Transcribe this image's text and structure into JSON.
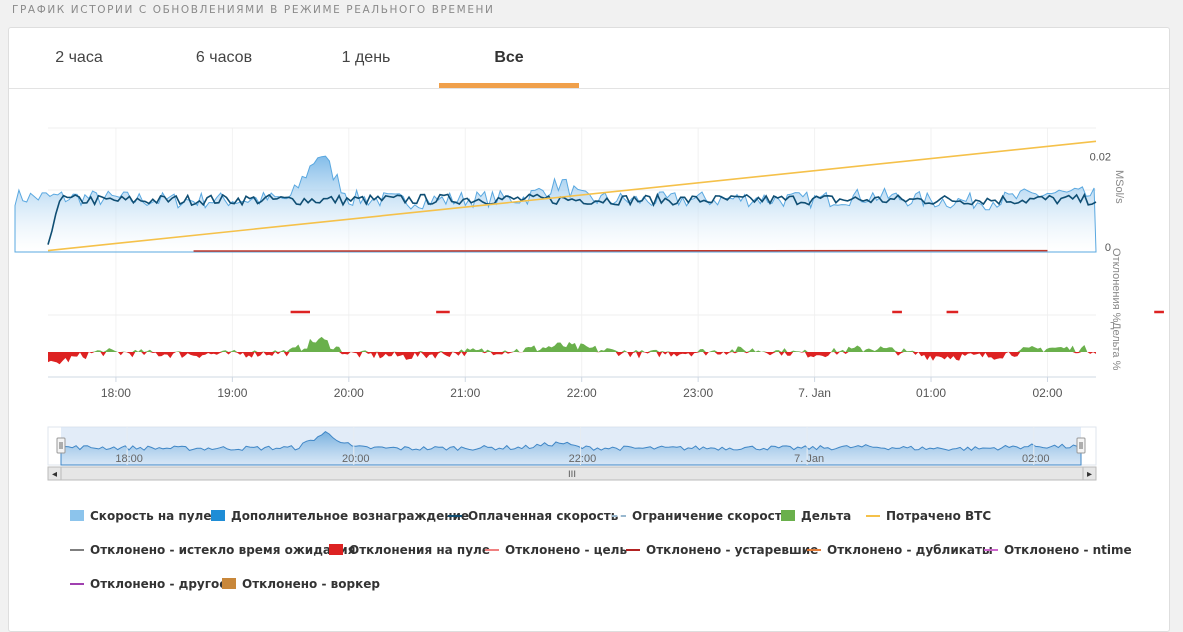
{
  "page_title": "ГРАФИК ИСТОРИИ С ОБНОВЛЕНИЯМИ В РЕЖИМЕ РЕАЛЬНОГО ВРЕМЕНИ",
  "tabs": [
    {
      "label": "2 часа",
      "active": false
    },
    {
      "label": "6 часов",
      "active": false
    },
    {
      "label": "1 день",
      "active": false
    },
    {
      "label": "Все",
      "active": true
    }
  ],
  "colors": {
    "pool_speed": "#8cc4ec",
    "bonus": "#1f8dd6",
    "paid_speed": "#0f4e73",
    "speed_limit": "#98b8cf",
    "delta_pos": "#6ab04c",
    "delta_neg": "#dd2222",
    "btc_spent": "#f5c14a",
    "rej_stale": "#c0392b",
    "accent": "#f0a04b"
  },
  "chart_data": {
    "type": "line",
    "x_range": [
      "17:25",
      "02:25"
    ],
    "x_ticks": [
      "18:00",
      "19:00",
      "20:00",
      "21:00",
      "22:00",
      "23:00",
      "7. Jan",
      "01:00",
      "02:00"
    ],
    "y_axes": [
      {
        "label": "MSol/s",
        "ticks": [
          "0.02",
          "0"
        ],
        "range": [
          0,
          0.026
        ]
      },
      {
        "label": "Отклонения %",
        "ticks": []
      },
      {
        "label": "Дельта %",
        "ticks": []
      }
    ],
    "series": [
      {
        "name": "Скорость на пуле",
        "type": "area",
        "x": [
          "17:30",
          "18:00",
          "18:30",
          "19:00",
          "19:30",
          "19:45",
          "20:00",
          "20:30",
          "21:00",
          "21:30",
          "21:50",
          "22:00",
          "22:30",
          "23:00",
          "23:30",
          "00:00",
          "00:30",
          "01:00",
          "01:30",
          "02:00",
          "02:25"
        ],
        "values": [
          0.0115,
          0.0112,
          0.0108,
          0.0109,
          0.0112,
          0.021,
          0.0113,
          0.0107,
          0.0111,
          0.0113,
          0.0145,
          0.0112,
          0.0108,
          0.011,
          0.0112,
          0.0109,
          0.0118,
          0.0108,
          0.0106,
          0.0123,
          0.0118
        ]
      },
      {
        "name": "Оплаченная скорость",
        "type": "line",
        "x": [
          "17:25",
          "17:30",
          "18:00",
          "19:00",
          "20:00",
          "21:00",
          "22:00",
          "23:00",
          "00:00",
          "01:00",
          "02:00",
          "02:25"
        ],
        "values": [
          0.0005,
          0.011,
          0.0108,
          0.011,
          0.0109,
          0.0111,
          0.011,
          0.0109,
          0.011,
          0.0109,
          0.011,
          0.0109
        ]
      },
      {
        "name": "Потрачено BTC",
        "type": "line",
        "x": [
          "17:25",
          "02:25"
        ],
        "values": [
          0.0003,
          0.0232
        ]
      },
      {
        "name": "Отклонено - устаревшие",
        "type": "line",
        "x": [
          "18:40",
          "02:00"
        ],
        "values": [
          0.0002,
          0.0003
        ]
      },
      {
        "name": "Дельта",
        "type": "area",
        "x": [
          "17:25",
          "17:50",
          "18:30",
          "19:00",
          "19:30",
          "19:30",
          "19:45",
          "20:00",
          "20:30",
          "21:00",
          "21:30",
          "21:50",
          "22:00",
          "22:30",
          "23:00",
          "23:30",
          "00:00",
          "00:30",
          "01:00",
          "01:30",
          "02:00",
          "02:25"
        ],
        "values": [
          -6,
          0,
          -1,
          -1,
          0,
          0,
          6,
          -1,
          -2,
          0,
          1,
          3,
          2,
          -1,
          0,
          1,
          -1,
          2,
          -2,
          -2,
          2,
          1
        ]
      }
    ]
  },
  "navigator": {
    "ticks": [
      "18:00",
      "20:00",
      "22:00",
      "7. Jan",
      "02:00"
    ],
    "scroll_grip": "III",
    "left_arrow": "◂",
    "right_arrow": "▸"
  },
  "legend": [
    {
      "label": "Скорость на пуле",
      "swatch": "box",
      "color": "#8cc4ec",
      "icon": "box"
    },
    {
      "label": "Дополнительное вознаграждение",
      "swatch": "box",
      "color": "#1f8dd6",
      "icon": "box"
    },
    {
      "label": "Оплаченная скорость",
      "swatch": "line",
      "color": "#0f4e73",
      "icon": "line"
    },
    {
      "label": "Ограничение скорости",
      "swatch": "dash",
      "color": "#98b8cf",
      "icon": "dash"
    },
    {
      "label": "Дельта",
      "swatch": "box",
      "color": "#6ab04c",
      "icon": "box"
    },
    {
      "label": "Потрачено BTC",
      "swatch": "line",
      "color": "#f5c14a",
      "icon": "line"
    },
    {
      "label": "Отклонено - истекло время ожидания",
      "swatch": "line",
      "color": "#7f7f7f",
      "icon": "line"
    },
    {
      "label": "Отклонения на пуле",
      "swatch": "box",
      "color": "#dd2222",
      "icon": "box"
    },
    {
      "label": "Отклонено - цель",
      "swatch": "line",
      "color": "#f08080",
      "icon": "line"
    },
    {
      "label": "Отклонено - устаревшие",
      "swatch": "line",
      "color": "#b22222",
      "icon": "line"
    },
    {
      "label": "Отклонено - дубликаты",
      "swatch": "line",
      "color": "#e07b39",
      "icon": "line"
    },
    {
      "label": "Отклонено - ntime",
      "swatch": "line",
      "color": "#cc66cc",
      "icon": "line"
    },
    {
      "label": "Отклонено - другое",
      "swatch": "line",
      "color": "#a040b0",
      "icon": "line"
    },
    {
      "label": "Отклонено - воркер",
      "swatch": "box",
      "color": "#c8873a",
      "icon": "box"
    }
  ]
}
